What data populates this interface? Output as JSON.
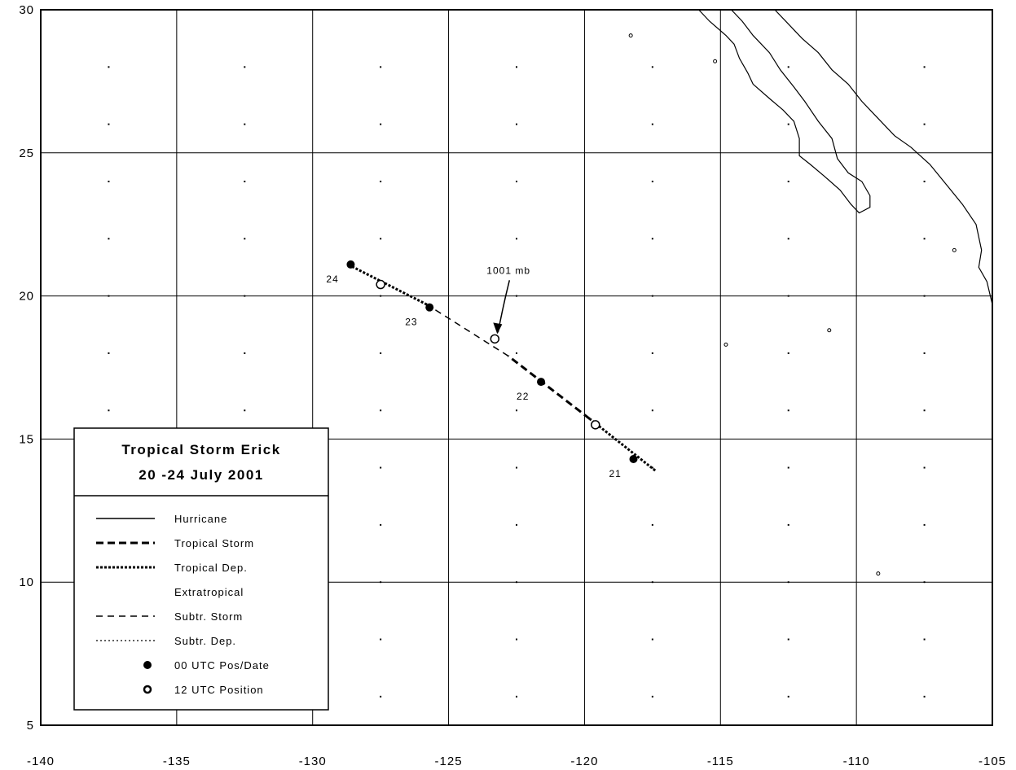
{
  "map": {
    "lon_range": [
      -140,
      -105
    ],
    "lat_range": [
      5,
      30
    ],
    "lon_ticks": [
      "-140",
      "-135",
      "-130",
      "-125",
      "-120",
      "-115",
      "-110",
      "-105"
    ],
    "lat_ticks": [
      "5",
      "10",
      "15",
      "20",
      "25",
      "30"
    ],
    "grid": "solid every 5°, dotted every 2.5°"
  },
  "legend": {
    "title_line1": "Tropical Storm Erick",
    "title_line2": "20 -24 July 2001",
    "items": [
      {
        "label": "Hurricane",
        "style": "solid"
      },
      {
        "label": "Tropical Storm",
        "style": "heavy-dash"
      },
      {
        "label": "Tropical Dep.",
        "style": "heavy-dot"
      },
      {
        "label": "Extratropical",
        "style": "none"
      },
      {
        "label": "Subtr. Storm",
        "style": "light-dash"
      },
      {
        "label": "Subtr. Dep.",
        "style": "light-dot"
      },
      {
        "label": "00 UTC Pos/Date",
        "style": "filled-circle"
      },
      {
        "label": "12 UTC Position",
        "style": "open-circle"
      }
    ]
  },
  "track": {
    "segments": [
      {
        "from": [
          -117.4,
          13.9
        ],
        "to": [
          -119.8,
          15.7
        ],
        "style": "heavy-dot"
      },
      {
        "from": [
          -119.8,
          15.7
        ],
        "to": [
          -122.8,
          17.9
        ],
        "style": "heavy-dash"
      },
      {
        "from": [
          -122.8,
          17.9
        ],
        "to": [
          -125.8,
          19.7
        ],
        "style": "light-dash"
      },
      {
        "from": [
          -125.8,
          19.7
        ],
        "to": [
          -128.7,
          21.1
        ],
        "style": "heavy-dot"
      }
    ],
    "positions": [
      {
        "lon": -118.2,
        "lat": 14.3,
        "type": "00",
        "date": "21"
      },
      {
        "lon": -119.6,
        "lat": 15.5,
        "type": "12"
      },
      {
        "lon": -121.6,
        "lat": 17.0,
        "type": "00",
        "date": "22"
      },
      {
        "lon": -123.3,
        "lat": 18.5,
        "type": "12"
      },
      {
        "lon": -125.7,
        "lat": 19.6,
        "type": "00",
        "date": "23"
      },
      {
        "lon": -127.5,
        "lat": 20.4,
        "type": "12"
      },
      {
        "lon": -128.6,
        "lat": 21.1,
        "type": "00",
        "date": "24"
      }
    ],
    "min_pressure_label": "1001 mb",
    "min_pressure_lon": -123.3,
    "min_pressure_lat": 18.5
  },
  "coastline": {
    "baja_pacific": [
      [
        -115.8,
        30
      ],
      [
        -115.4,
        29.6
      ],
      [
        -114.8,
        29.1
      ],
      [
        -114.5,
        28.8
      ],
      [
        -114.3,
        28.3
      ],
      [
        -114.0,
        27.8
      ],
      [
        -113.8,
        27.4
      ],
      [
        -113.2,
        26.9
      ],
      [
        -112.7,
        26.5
      ],
      [
        -112.3,
        26.1
      ],
      [
        -112.1,
        25.5
      ],
      [
        -112.1,
        24.9
      ],
      [
        -111.7,
        24.6
      ],
      [
        -111.2,
        24.2
      ],
      [
        -110.6,
        23.7
      ],
      [
        -110.2,
        23.2
      ],
      [
        -109.9,
        22.9
      ],
      [
        -109.5,
        23.1
      ],
      [
        -109.5,
        23.5
      ],
      [
        -109.8,
        24.0
      ],
      [
        -110.3,
        24.3
      ],
      [
        -110.7,
        24.8
      ],
      [
        -110.9,
        25.5
      ],
      [
        -111.4,
        26.1
      ],
      [
        -111.9,
        26.8
      ],
      [
        -112.3,
        27.3
      ],
      [
        -112.8,
        27.9
      ],
      [
        -113.2,
        28.5
      ],
      [
        -113.8,
        29.1
      ],
      [
        -114.2,
        29.6
      ],
      [
        -114.6,
        30
      ]
    ],
    "mainland": [
      [
        -113.0,
        30
      ],
      [
        -112.5,
        29.5
      ],
      [
        -112.0,
        29.0
      ],
      [
        -111.4,
        28.5
      ],
      [
        -110.9,
        27.9
      ],
      [
        -110.3,
        27.4
      ],
      [
        -109.8,
        26.8
      ],
      [
        -109.2,
        26.2
      ],
      [
        -108.6,
        25.6
      ],
      [
        -108.0,
        25.2
      ],
      [
        -107.3,
        24.6
      ],
      [
        -106.7,
        23.9
      ],
      [
        -106.1,
        23.2
      ],
      [
        -105.6,
        22.5
      ],
      [
        -105.4,
        21.6
      ],
      [
        -105.5,
        21.0
      ],
      [
        -105.2,
        20.5
      ],
      [
        -105.0,
        19.7
      ]
    ],
    "islands": [
      [
        -118.3,
        29.1
      ],
      [
        -115.2,
        28.2
      ],
      [
        -111.0,
        18.8
      ],
      [
        -114.8,
        18.3
      ],
      [
        -109.2,
        10.3
      ],
      [
        -106.4,
        21.6
      ]
    ]
  }
}
